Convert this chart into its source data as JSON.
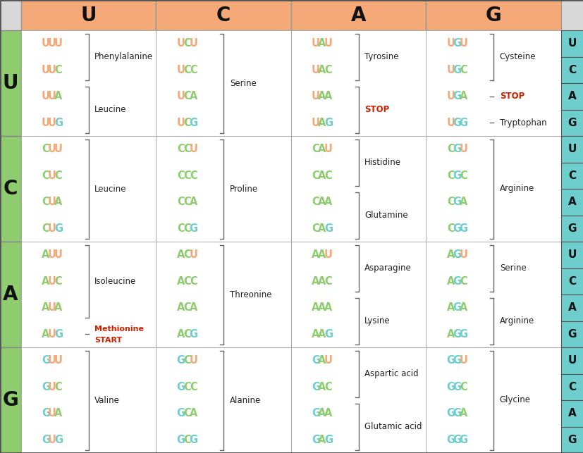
{
  "header_bg": "#f5a878",
  "left_bg": "#8fcc6f",
  "right_bg": "#6ecece",
  "cell_bg": "#ffffff",
  "nuc_colors": {
    "U": "#f5a878",
    "C": "#8fcc6f",
    "A": "#8fcc6f",
    "G": "#6ecece"
  },
  "stop_color": "#cc2200",
  "methionine_color": "#cc2200",
  "rows": [
    "U",
    "C",
    "A",
    "G"
  ],
  "cols": [
    "U",
    "C",
    "A",
    "G"
  ],
  "codons": {
    "UU": {
      "bases": [
        "UUU",
        "UUC",
        "UUA",
        "UUG"
      ],
      "groups": [
        {
          "amino": "Phenylalanine",
          "n": 2,
          "special": false
        },
        {
          "amino": "Leucine",
          "n": 2,
          "special": false
        }
      ]
    },
    "UC": {
      "bases": [
        "UCU",
        "UCC",
        "UCA",
        "UCG"
      ],
      "groups": [
        {
          "amino": "Serine",
          "n": 4,
          "special": false
        }
      ]
    },
    "UA": {
      "bases": [
        "UAU",
        "UAC",
        "UAA",
        "UAG"
      ],
      "groups": [
        {
          "amino": "Tyrosine",
          "n": 2,
          "special": false
        },
        {
          "amino": "STOP",
          "n": 2,
          "special": "stop"
        }
      ]
    },
    "UG": {
      "bases": [
        "UGU",
        "UGC",
        "UGA",
        "UGG"
      ],
      "groups": [
        {
          "amino": "Cysteine",
          "n": 2,
          "special": false
        },
        {
          "amino": "STOP",
          "n": 1,
          "special": "stop"
        },
        {
          "amino": "Tryptophan",
          "n": 1,
          "special": false
        }
      ]
    },
    "CU": {
      "bases": [
        "CUU",
        "CUC",
        "CUA",
        "CUG"
      ],
      "groups": [
        {
          "amino": "Leucine",
          "n": 4,
          "special": false
        }
      ]
    },
    "CC": {
      "bases": [
        "CCU",
        "CCC",
        "CCA",
        "CCG"
      ],
      "groups": [
        {
          "amino": "Proline",
          "n": 4,
          "special": false
        }
      ]
    },
    "CA": {
      "bases": [
        "CAU",
        "CAC",
        "CAA",
        "CAG"
      ],
      "groups": [
        {
          "amino": "Histidine",
          "n": 2,
          "special": false
        },
        {
          "amino": "Glutamine",
          "n": 2,
          "special": false
        }
      ]
    },
    "CG": {
      "bases": [
        "CGU",
        "CGC",
        "CGA",
        "CGG"
      ],
      "groups": [
        {
          "amino": "Arginine",
          "n": 4,
          "special": false
        }
      ]
    },
    "AU": {
      "bases": [
        "AUU",
        "AUC",
        "AUA",
        "AUG"
      ],
      "groups": [
        {
          "amino": "Isoleucine",
          "n": 3,
          "special": false
        },
        {
          "amino": "Methionine\nSTART",
          "n": 1,
          "special": "methionine"
        }
      ]
    },
    "AC": {
      "bases": [
        "ACU",
        "ACC",
        "ACA",
        "ACG"
      ],
      "groups": [
        {
          "amino": "Threonine",
          "n": 4,
          "special": false
        }
      ]
    },
    "AA": {
      "bases": [
        "AAU",
        "AAC",
        "AAA",
        "AAG"
      ],
      "groups": [
        {
          "amino": "Asparagine",
          "n": 2,
          "special": false
        },
        {
          "amino": "Lysine",
          "n": 2,
          "special": false
        }
      ]
    },
    "AG": {
      "bases": [
        "AGU",
        "AGC",
        "AGA",
        "AGG"
      ],
      "groups": [
        {
          "amino": "Serine",
          "n": 2,
          "special": false
        },
        {
          "amino": "Arginine",
          "n": 2,
          "special": false
        }
      ]
    },
    "GU": {
      "bases": [
        "GUU",
        "GUC",
        "GUA",
        "GUG"
      ],
      "groups": [
        {
          "amino": "Valine",
          "n": 4,
          "special": false
        }
      ]
    },
    "GC": {
      "bases": [
        "GCU",
        "GCC",
        "GCA",
        "GCG"
      ],
      "groups": [
        {
          "amino": "Alanine",
          "n": 4,
          "special": false
        }
      ]
    },
    "GA": {
      "bases": [
        "GAU",
        "GAC",
        "GAA",
        "GAG"
      ],
      "groups": [
        {
          "amino": "Aspartic acid",
          "n": 2,
          "special": false
        },
        {
          "amino": "Glutamic acid",
          "n": 2,
          "special": false
        }
      ]
    },
    "GG": {
      "bases": [
        "GGU",
        "GGC",
        "GGA",
        "GGG"
      ],
      "groups": [
        {
          "amino": "Glycine",
          "n": 4,
          "special": false
        }
      ]
    }
  }
}
